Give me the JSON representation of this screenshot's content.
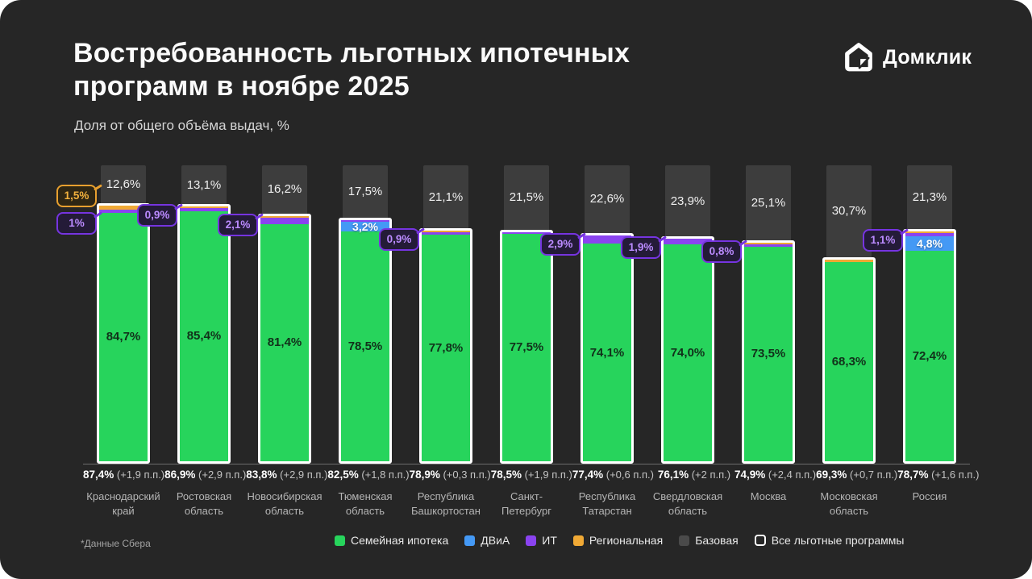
{
  "brand": {
    "name": "Домклик"
  },
  "header": {
    "title_line1": "Востребованность льготных ипотечных",
    "title_line2": "программ в ноябре 2025",
    "subtitle": "Доля от общего объёма выдач, %"
  },
  "footnote": "*Данные Сбера",
  "colors": {
    "family": "#27d45c",
    "dvia": "#4499f5",
    "it": "#8a43f0",
    "regional": "#f0a935",
    "base": "#3d3d3d",
    "all_outline": "#ffffff"
  },
  "legend": [
    {
      "key": "family",
      "label": "Семейная ипотека",
      "color": "#27d45c",
      "swatch": "fill"
    },
    {
      "key": "dvia",
      "label": "ДВиА",
      "color": "#4499f5",
      "swatch": "fill"
    },
    {
      "key": "it",
      "label": "ИТ",
      "color": "#8a43f0",
      "swatch": "fill"
    },
    {
      "key": "regional",
      "label": "Региональная",
      "color": "#f0a935",
      "swatch": "fill"
    },
    {
      "key": "base",
      "label": "Базовая",
      "color": "#4a4a4a",
      "swatch": "fill"
    },
    {
      "key": "all",
      "label": "Все льготные программы",
      "color": "#ffffff",
      "swatch": "outline"
    }
  ],
  "chart_data": {
    "type": "bar",
    "stacked": true,
    "unit": "%",
    "ylim": [
      0,
      100
    ],
    "categories": [
      "Краснодарский край",
      "Ростовская область",
      "Новосибирская область",
      "Тюменская область",
      "Республика Башкортостан",
      "Санкт-Петербург",
      "Республика Татарстан",
      "Свердловская область",
      "Москва",
      "Московская область",
      "Россия"
    ],
    "bars": [
      {
        "region": "Краснодарский край",
        "total": 87.4,
        "total_label": "87,4%",
        "change_label": "(+1,9 п.п.)",
        "base": 12.6,
        "base_label": "12,6%",
        "family": 84.7,
        "family_label": "84,7%",
        "regional": 1.5,
        "it": 1.0,
        "dvia": 0,
        "callouts": [
          {
            "kind": "regional",
            "label": "1,5%"
          },
          {
            "kind": "it",
            "label": "1%"
          }
        ]
      },
      {
        "region": "Ростовская область",
        "total": 86.9,
        "total_label": "86,9%",
        "change_label": "(+2,9 п.п.)",
        "base": 13.1,
        "base_label": "13,1%",
        "family": 85.4,
        "family_label": "85,4%",
        "regional": 0.5,
        "it": 0.9,
        "dvia": 0,
        "callouts": [
          {
            "kind": "it",
            "label": "0,9%"
          }
        ]
      },
      {
        "region": "Новосибирская область",
        "total": 83.8,
        "total_label": "83,8%",
        "change_label": "(+2,9 п.п.)",
        "base": 16.2,
        "base_label": "16,2%",
        "family": 81.4,
        "family_label": "81,4%",
        "regional": 0.2,
        "it": 2.1,
        "dvia": 0,
        "callouts": [
          {
            "kind": "it",
            "label": "2,1%"
          }
        ]
      },
      {
        "region": "Тюменская область",
        "total": 82.5,
        "total_label": "82,5%",
        "change_label": "(+1,8 п.п.)",
        "base": 17.5,
        "base_label": "17,5%",
        "family": 78.5,
        "family_label": "78,5%",
        "regional": 0,
        "it": 0.6,
        "dvia": 3.2,
        "dvia_label": "3,2%",
        "callouts": []
      },
      {
        "region": "Республика Башкортостан",
        "total": 78.9,
        "total_label": "78,9%",
        "change_label": "(+0,3 п.п.)",
        "base": 21.1,
        "base_label": "21,1%",
        "family": 77.8,
        "family_label": "77,8%",
        "regional": 0.2,
        "it": 0.9,
        "dvia": 0,
        "callouts": [
          {
            "kind": "it",
            "label": "0,9%"
          }
        ]
      },
      {
        "region": "Санкт-Петербург",
        "total": 78.5,
        "total_label": "78,5%",
        "change_label": "(+1,9 п.п.)",
        "base": 21.5,
        "base_label": "21,5%",
        "family": 77.5,
        "family_label": "77,5%",
        "regional": 0,
        "it": 0.6,
        "dvia": 0,
        "callouts": []
      },
      {
        "region": "Республика Татарстан",
        "total": 77.4,
        "total_label": "77,4%",
        "change_label": "(+0,6 п.п.)",
        "base": 22.6,
        "base_label": "22,6%",
        "family": 74.1,
        "family_label": "74,1%",
        "regional": 0,
        "it": 2.9,
        "dvia": 0,
        "callouts": [
          {
            "kind": "it",
            "label": "2,9%"
          }
        ]
      },
      {
        "region": "Свердловская область",
        "total": 76.1,
        "total_label": "76,1%",
        "change_label": "(+2 п.п.)",
        "base": 23.9,
        "base_label": "23,9%",
        "family": 74.0,
        "family_label": "74,0%",
        "regional": 0,
        "it": 1.9,
        "dvia": 0,
        "callouts": [
          {
            "kind": "it",
            "label": "1,9%"
          }
        ]
      },
      {
        "region": "Москва",
        "total": 74.9,
        "total_label": "74,9%",
        "change_label": "(+2,4 п.п.)",
        "base": 25.1,
        "base_label": "25,1%",
        "family": 73.5,
        "family_label": "73,5%",
        "regional": 0.5,
        "it": 0.8,
        "dvia": 0,
        "callouts": [
          {
            "kind": "it",
            "label": "0,8%"
          }
        ]
      },
      {
        "region": "Московская область",
        "total": 69.3,
        "total_label": "69,3%",
        "change_label": "(+0,7 п.п.)",
        "base": 30.7,
        "base_label": "30,7%",
        "family": 68.3,
        "family_label": "68,3%",
        "regional": 0.8,
        "it": 0,
        "dvia": 0,
        "callouts": []
      },
      {
        "region": "Россия",
        "total": 78.7,
        "total_label": "78,7%",
        "change_label": "(+1,6 п.п.)",
        "base": 21.3,
        "base_label": "21,3%",
        "family": 72.4,
        "family_label": "72,4%",
        "regional": 0.4,
        "it": 1.1,
        "dvia": 4.8,
        "dvia_label": "4,8%",
        "callouts": [
          {
            "kind": "it",
            "label": "1,1%"
          }
        ]
      }
    ]
  }
}
